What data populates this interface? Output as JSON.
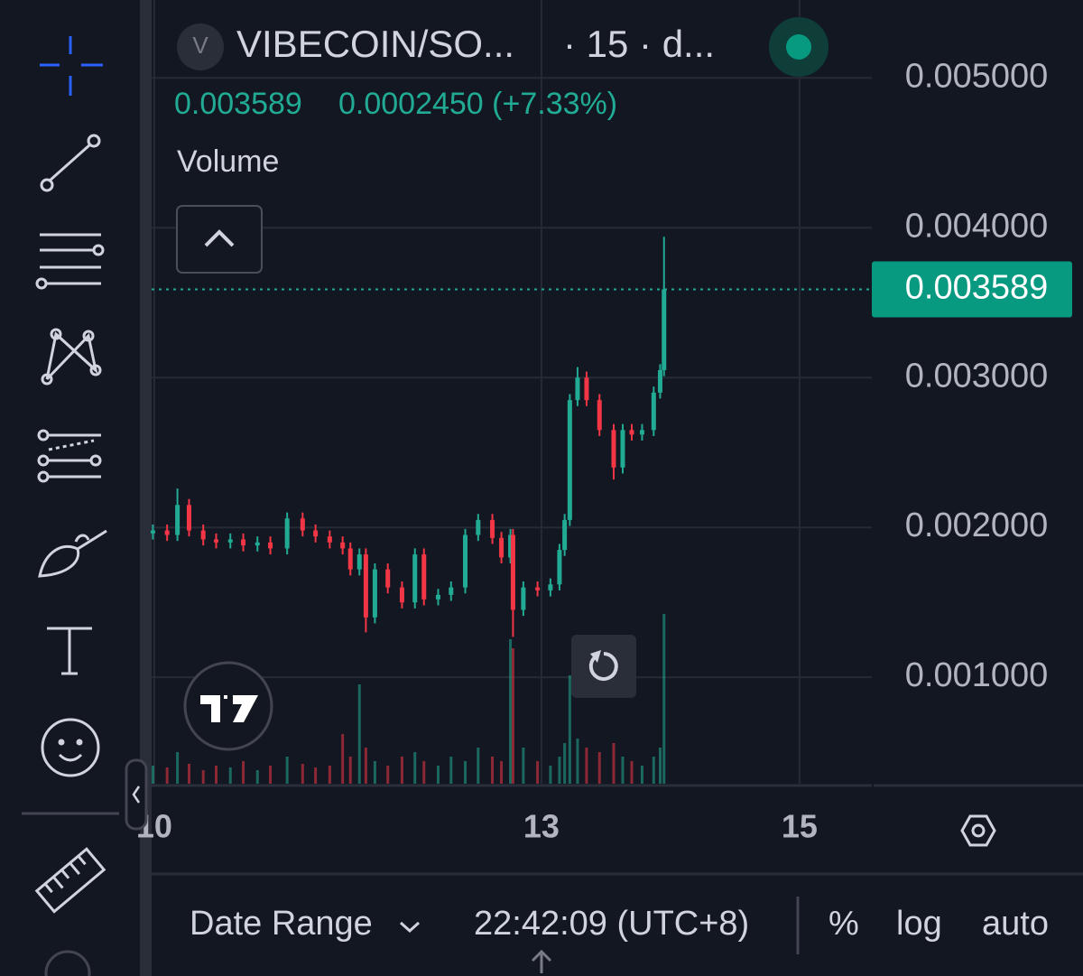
{
  "header": {
    "logo_letter": "V",
    "symbol": "VIBECOIN/SO...",
    "interval": "· 15 · d...",
    "price": "0.003589",
    "change": "0.0002450 (+7.33%)",
    "volume_label": "Volume"
  },
  "footer": {
    "date_range": "Date Range",
    "time": "22:42:09 (UTC+8)",
    "percent": "%",
    "log": "log",
    "auto": "auto"
  },
  "chart_data": {
    "type": "candlestick",
    "x": [
      9.99,
      10.1,
      10.18,
      10.27,
      10.38,
      10.48,
      10.59,
      10.69,
      10.8,
      10.9,
      11.03,
      11.15,
      11.25,
      11.36,
      11.46,
      11.52,
      11.59,
      11.64,
      11.71,
      11.81,
      11.92,
      12.02,
      12.09,
      12.2,
      12.3,
      12.41,
      12.51,
      12.62,
      12.69,
      12.76,
      12.78,
      12.86,
      12.97,
      13.07,
      13.14,
      13.18,
      13.22,
      13.28,
      13.35,
      13.45,
      13.56,
      13.63,
      13.7,
      13.78,
      13.87,
      13.92,
      13.95
    ],
    "open": [
      0.00196,
      0.00198,
      0.00195,
      0.00215,
      0.00198,
      0.00192,
      0.0019,
      0.00192,
      0.00188,
      0.0019,
      0.00186,
      0.00206,
      0.00198,
      0.00194,
      0.0019,
      0.00186,
      0.00172,
      0.00182,
      0.0014,
      0.00172,
      0.0016,
      0.0015,
      0.00182,
      0.00152,
      0.00155,
      0.0016,
      0.00195,
      0.00205,
      0.00193,
      0.0018,
      0.00195,
      0.00145,
      0.0016,
      0.00158,
      0.00162,
      0.00185,
      0.00205,
      0.00285,
      0.003,
      0.00285,
      0.00265,
      0.0024,
      0.00265,
      0.00262,
      0.00265,
      0.0029,
      0.00305
    ],
    "high": [
      0.00202,
      0.00202,
      0.00226,
      0.00219,
      0.00202,
      0.00196,
      0.00196,
      0.00196,
      0.00194,
      0.00194,
      0.0021,
      0.0021,
      0.00202,
      0.00198,
      0.00194,
      0.0019,
      0.00186,
      0.00186,
      0.00176,
      0.00176,
      0.00164,
      0.00186,
      0.00186,
      0.00159,
      0.00164,
      0.00199,
      0.00209,
      0.00209,
      0.00197,
      0.00199,
      0.00199,
      0.00164,
      0.00164,
      0.00166,
      0.00189,
      0.00209,
      0.00289,
      0.00307,
      0.00304,
      0.00289,
      0.00269,
      0.00269,
      0.00269,
      0.00269,
      0.00294,
      0.00309,
      0.00394
    ],
    "low": [
      0.00192,
      0.00191,
      0.00191,
      0.00194,
      0.00188,
      0.00186,
      0.00186,
      0.00184,
      0.00184,
      0.00182,
      0.00182,
      0.00194,
      0.0019,
      0.00186,
      0.00182,
      0.00168,
      0.00168,
      0.0013,
      0.00136,
      0.00156,
      0.00146,
      0.00146,
      0.00148,
      0.00148,
      0.00151,
      0.00156,
      0.00191,
      0.00189,
      0.00176,
      0.00176,
      0.00127,
      0.00141,
      0.00154,
      0.00154,
      0.00158,
      0.00181,
      0.00201,
      0.00281,
      0.00281,
      0.00261,
      0.00232,
      0.00236,
      0.00258,
      0.00258,
      0.00261,
      0.00286,
      0.00301
    ],
    "close": [
      0.00198,
      0.00195,
      0.00215,
      0.00198,
      0.00192,
      0.0019,
      0.00192,
      0.00188,
      0.0019,
      0.00186,
      0.00206,
      0.00198,
      0.00194,
      0.0019,
      0.00186,
      0.00172,
      0.00182,
      0.0014,
      0.00172,
      0.0016,
      0.0015,
      0.00182,
      0.00152,
      0.00155,
      0.0016,
      0.00195,
      0.00205,
      0.00193,
      0.0018,
      0.00195,
      0.00145,
      0.0016,
      0.00158,
      0.00162,
      0.00185,
      0.00205,
      0.00285,
      0.003,
      0.00285,
      0.00265,
      0.0024,
      0.00265,
      0.00262,
      0.00265,
      0.0029,
      0.00305,
      0.003589
    ],
    "volume": [
      20,
      18,
      35,
      22,
      15,
      20,
      18,
      25,
      15,
      20,
      30,
      22,
      18,
      20,
      55,
      30,
      110,
      40,
      25,
      20,
      30,
      35,
      25,
      20,
      30,
      25,
      40,
      30,
      25,
      160,
      150,
      40,
      25,
      20,
      30,
      45,
      120,
      50,
      40,
      35,
      45,
      30,
      25,
      20,
      30,
      40,
      188
    ],
    "last_price": 0.003589,
    "up_color": "#22ab94",
    "down_color": "#f23645",
    "xlim": [
      9.98,
      15.56
    ],
    "xticks": [
      10,
      13,
      15
    ],
    "ylim": [
      0.00029,
      0.00552
    ],
    "yticks": [
      {
        "value": 0.001,
        "label": "0.001000"
      },
      {
        "value": 0.002,
        "label": "0.002000"
      },
      {
        "value": 0.003,
        "label": "0.003000"
      },
      {
        "value": 0.004,
        "label": "0.004000"
      },
      {
        "value": 0.005,
        "label": "0.005000"
      }
    ],
    "grid": true
  }
}
